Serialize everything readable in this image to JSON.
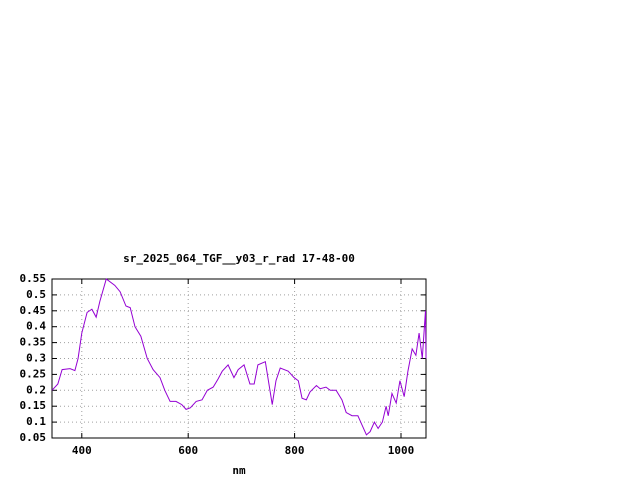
{
  "chart_data": {
    "type": "line",
    "title": "sr_2025_064_TGF__y03_r_rad 17-48-00",
    "x_label": "nm",
    "xlim": [
      344,
      1047
    ],
    "xticks": [
      400,
      600,
      800,
      1000
    ],
    "ylim": [
      0.05,
      0.55
    ],
    "yticks": [
      0.05,
      0.1,
      0.15,
      0.2,
      0.25,
      0.3,
      0.35,
      0.4,
      0.45,
      0.5,
      0.55
    ],
    "grid": true,
    "x": [
      344,
      355,
      363,
      378,
      387,
      393,
      400,
      410,
      419,
      427,
      434,
      446,
      462,
      472,
      483,
      491,
      500,
      511,
      523,
      534,
      547,
      556,
      566,
      577,
      588,
      596,
      604,
      615,
      626,
      636,
      647,
      656,
      664,
      675,
      686,
      694,
      705,
      716,
      724,
      731,
      745,
      758,
      765,
      773,
      788,
      799,
      807,
      814,
      822,
      829,
      841,
      848,
      859,
      867,
      878,
      889,
      897,
      908,
      919,
      927,
      935,
      942,
      950,
      957,
      965,
      972,
      976,
      983,
      991,
      998,
      1006,
      1013,
      1021,
      1028,
      1034,
      1040,
      1046,
      1047
    ],
    "series": [
      {
        "color": "#9400d3",
        "values": [
          0.2,
          0.22,
          0.265,
          0.268,
          0.262,
          0.3,
          0.38,
          0.445,
          0.455,
          0.43,
          0.48,
          0.55,
          0.53,
          0.51,
          0.465,
          0.46,
          0.4,
          0.37,
          0.3,
          0.265,
          0.24,
          0.2,
          0.165,
          0.165,
          0.155,
          0.14,
          0.145,
          0.165,
          0.17,
          0.2,
          0.21,
          0.235,
          0.26,
          0.28,
          0.24,
          0.265,
          0.28,
          0.22,
          0.22,
          0.28,
          0.29,
          0.155,
          0.23,
          0.27,
          0.26,
          0.24,
          0.23,
          0.175,
          0.17,
          0.195,
          0.215,
          0.205,
          0.21,
          0.2,
          0.2,
          0.17,
          0.13,
          0.12,
          0.12,
          0.09,
          0.06,
          0.07,
          0.1,
          0.08,
          0.1,
          0.15,
          0.12,
          0.19,
          0.16,
          0.23,
          0.18,
          0.26,
          0.33,
          0.31,
          0.38,
          0.3,
          0.45,
          0.3
        ]
      }
    ]
  }
}
